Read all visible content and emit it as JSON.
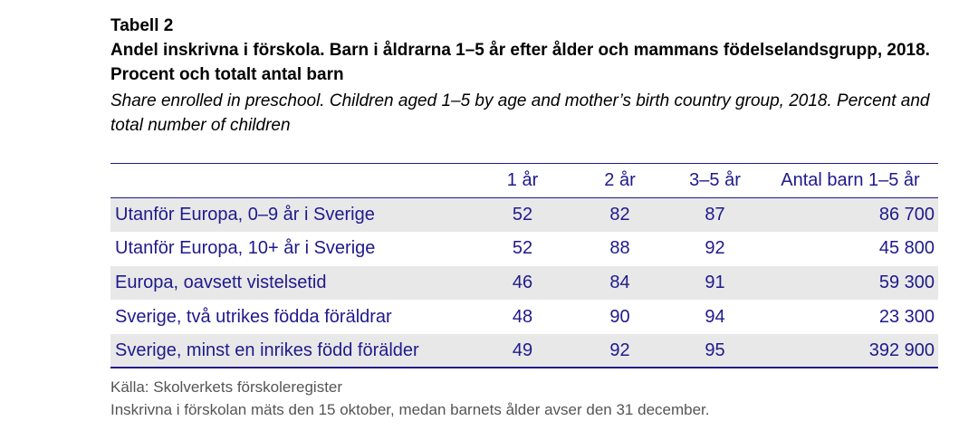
{
  "document": {
    "table_label": "Tabell 2",
    "title_sv": "Andel inskrivna i förskola. Barn i åldrarna 1–5 år efter ålder och mammans födelselandsgrupp, 2018. Procent och totalt antal barn",
    "title_en": "Share enrolled in preschool. Children aged 1–5 by age and mother’s birth country group, 2018. Percent and total number of children"
  },
  "table": {
    "headers": [
      "",
      "1 år",
      "2 år",
      "3–5 år",
      "Antal barn 1–5 år"
    ],
    "rows": [
      [
        "Utanför Europa, 0–9 år i Sverige",
        "52",
        "82",
        "87",
        "86 700"
      ],
      [
        "Utanför Europa, 10+ år i Sverige",
        "52",
        "88",
        "92",
        "45 800"
      ],
      [
        "Europa, oavsett vistelsetid",
        "46",
        "84",
        "91",
        "59 300"
      ],
      [
        "Sverige, två utrikes födda föräldrar",
        "48",
        "90",
        "94",
        "23 300"
      ],
      [
        "Sverige, minst en inrikes född förälder",
        "49",
        "92",
        "95",
        "392 900"
      ]
    ]
  },
  "notes": {
    "source": "Källa: Skolverkets förskoleregister",
    "footnote": "Inskrivna i förskolan mäts den 15 oktober, medan barnets ålder avser den 31 december."
  },
  "colors": {
    "table_text": "#1f1a8c",
    "zebra": "#e8e8e8",
    "note_text": "#555555"
  }
}
